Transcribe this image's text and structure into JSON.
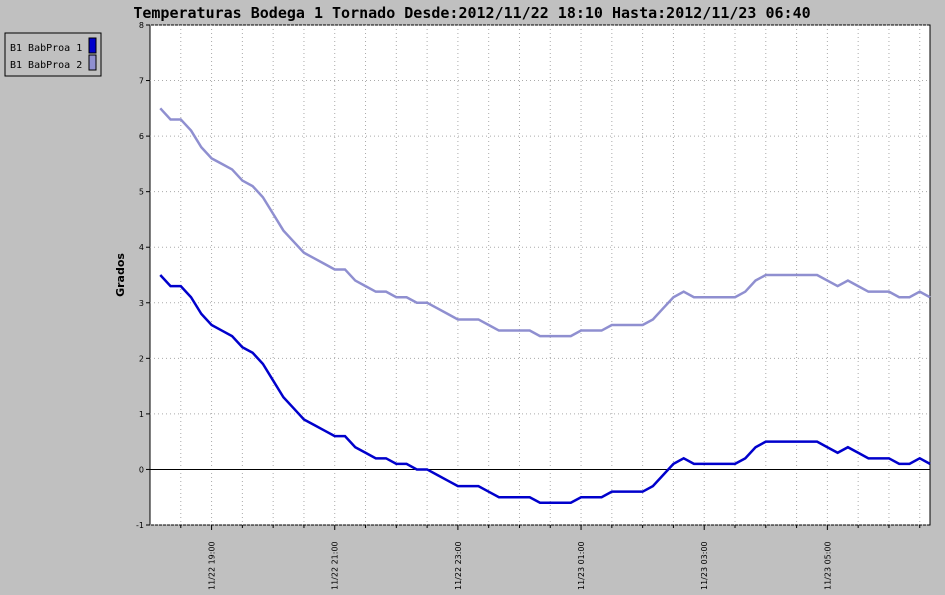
{
  "chart_data": {
    "type": "line",
    "title": "Temperaturas Bodega 1 Tornado Desde:2012/11/22 18:10 Hasta:2012/11/23 06:40",
    "y_label": "Grados",
    "x": [
      "11/22 18:10",
      "11/22 18:20",
      "11/22 18:30",
      "11/22 18:40",
      "11/22 18:50",
      "11/22 19:00",
      "11/22 19:10",
      "11/22 19:20",
      "11/22 19:30",
      "11/22 19:40",
      "11/22 19:50",
      "11/22 20:00",
      "11/22 20:10",
      "11/22 20:20",
      "11/22 20:30",
      "11/22 20:40",
      "11/22 20:50",
      "11/22 21:00",
      "11/22 21:10",
      "11/22 21:20",
      "11/22 21:30",
      "11/22 21:40",
      "11/22 21:50",
      "11/22 22:00",
      "11/22 22:10",
      "11/22 22:20",
      "11/22 22:30",
      "11/22 22:40",
      "11/22 22:50",
      "11/22 23:00",
      "11/22 23:10",
      "11/22 23:20",
      "11/22 23:30",
      "11/22 23:40",
      "11/22 23:50",
      "11/23 00:00",
      "11/23 00:10",
      "11/23 00:20",
      "11/23 00:30",
      "11/23 00:40",
      "11/23 00:50",
      "11/23 01:00",
      "11/23 01:10",
      "11/23 01:20",
      "11/23 01:30",
      "11/23 01:40",
      "11/23 01:50",
      "11/23 02:00",
      "11/23 02:10",
      "11/23 02:20",
      "11/23 02:30",
      "11/23 02:40",
      "11/23 02:50",
      "11/23 03:00",
      "11/23 03:10",
      "11/23 03:20",
      "11/23 03:30",
      "11/23 03:40",
      "11/23 03:50",
      "11/23 04:00",
      "11/23 04:10",
      "11/23 04:20",
      "11/23 04:30",
      "11/23 04:40",
      "11/23 04:50",
      "11/23 05:00",
      "11/23 05:10",
      "11/23 05:20",
      "11/23 05:30",
      "11/23 05:40",
      "11/23 05:50",
      "11/23 06:00",
      "11/23 06:10",
      "11/23 06:20",
      "11/23 06:30",
      "11/23 06:40"
    ],
    "series": [
      {
        "name": "B1 BabProa 1",
        "color": "#0000cc",
        "values": [
          3.5,
          3.3,
          3.3,
          3.1,
          2.8,
          2.6,
          2.5,
          2.4,
          2.2,
          2.1,
          1.9,
          1.6,
          1.3,
          1.1,
          0.9,
          0.8,
          0.7,
          0.6,
          0.6,
          0.4,
          0.3,
          0.2,
          0.2,
          0.1,
          0.1,
          0.0,
          0.0,
          -0.1,
          -0.2,
          -0.3,
          -0.3,
          -0.3,
          -0.4,
          -0.5,
          -0.5,
          -0.5,
          -0.5,
          -0.6,
          -0.6,
          -0.6,
          -0.6,
          -0.5,
          -0.5,
          -0.5,
          -0.4,
          -0.4,
          -0.4,
          -0.4,
          -0.3,
          -0.1,
          0.1,
          0.2,
          0.1,
          0.1,
          0.1,
          0.1,
          0.1,
          0.2,
          0.4,
          0.5,
          0.5,
          0.5,
          0.5,
          0.5,
          0.5,
          0.4,
          0.3,
          0.4,
          0.3,
          0.2,
          0.2,
          0.2,
          0.1,
          0.1,
          0.2,
          0.1
        ]
      },
      {
        "name": "B1 BabProa 2",
        "color": "#8f8fd0",
        "values": [
          6.5,
          6.3,
          6.3,
          6.1,
          5.8,
          5.6,
          5.5,
          5.4,
          5.2,
          5.1,
          4.9,
          4.6,
          4.3,
          4.1,
          3.9,
          3.8,
          3.7,
          3.6,
          3.6,
          3.4,
          3.3,
          3.2,
          3.2,
          3.1,
          3.1,
          3.0,
          3.0,
          2.9,
          2.8,
          2.7,
          2.7,
          2.7,
          2.6,
          2.5,
          2.5,
          2.5,
          2.5,
          2.4,
          2.4,
          2.4,
          2.4,
          2.5,
          2.5,
          2.5,
          2.6,
          2.6,
          2.6,
          2.6,
          2.7,
          2.9,
          3.1,
          3.2,
          3.1,
          3.1,
          3.1,
          3.1,
          3.1,
          3.2,
          3.4,
          3.5,
          3.5,
          3.5,
          3.5,
          3.5,
          3.5,
          3.4,
          3.3,
          3.4,
          3.3,
          3.2,
          3.2,
          3.2,
          3.1,
          3.1,
          3.2,
          3.1
        ]
      }
    ],
    "xlim": [
      "11/22 18:00",
      "11/23 06:40"
    ],
    "xticks": [
      "11/22 19:00",
      "11/22 21:00",
      "11/22 23:00",
      "11/23 01:00",
      "11/23 03:00",
      "11/23 05:00"
    ],
    "x_minor_ticks": [
      "11/22 18:30",
      "11/22 19:30",
      "11/22 20:00",
      "11/22 20:30",
      "11/22 21:30",
      "11/22 22:00",
      "11/22 22:30",
      "11/22 23:30",
      "11/23 00:00",
      "11/23 00:30",
      "11/23 01:30",
      "11/23 02:00",
      "11/23 02:30",
      "11/23 03:30",
      "11/23 04:00",
      "11/23 04:30",
      "11/23 05:30",
      "11/23 06:00",
      "11/23 06:30"
    ],
    "ylim": [
      -1,
      8
    ],
    "yticks": [
      -1,
      0,
      1,
      2,
      3,
      4,
      5,
      6,
      7,
      8
    ],
    "grid": true,
    "legend": "top-left"
  }
}
